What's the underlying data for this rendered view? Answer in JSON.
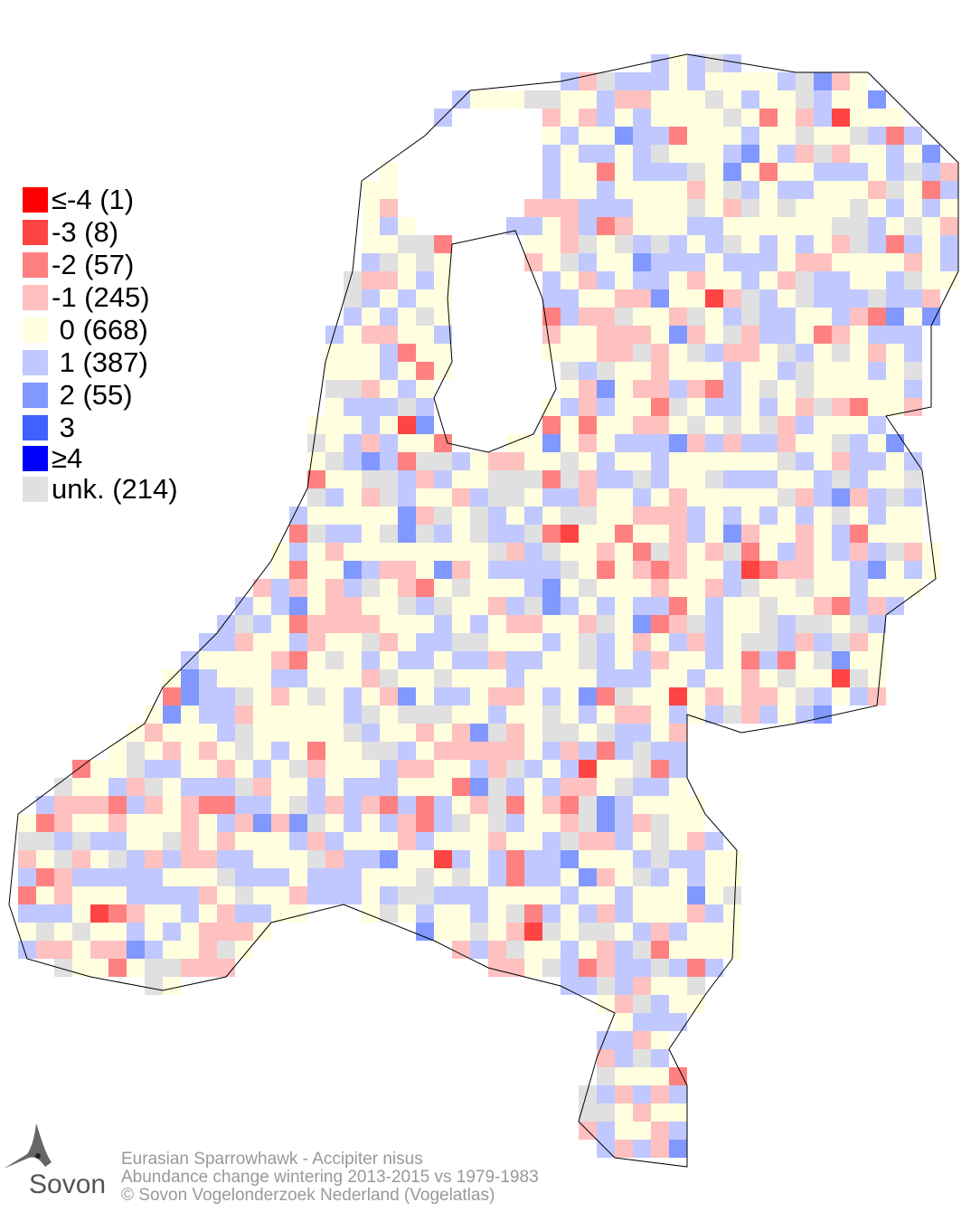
{
  "legend": {
    "items": [
      {
        "label": "≤-4 (1)",
        "class": -4,
        "count": 1,
        "color": "#ff0000"
      },
      {
        "label": "-3 (8)",
        "class": -3,
        "count": 8,
        "color": "#ff4444"
      },
      {
        "label": "-2 (57)",
        "class": -2,
        "count": 57,
        "color": "#ff8080"
      },
      {
        "label": "-1 (245)",
        "class": -1,
        "count": 245,
        "color": "#ffc0c0"
      },
      {
        "label": " 0 (668)",
        "class": 0,
        "count": 668,
        "color": "#ffffe0"
      },
      {
        "label": " 1 (387)",
        "class": 1,
        "count": 387,
        "color": "#c0c8ff"
      },
      {
        "label": " 2 (55)",
        "class": 2,
        "count": 55,
        "color": "#8098ff"
      },
      {
        "label": " 3",
        "class": 3,
        "count": 0,
        "color": "#4060ff"
      },
      {
        "label": "≥4",
        "class": 4,
        "count": 0,
        "color": "#0000ff"
      },
      {
        "label": "unk. (214)",
        "class": "unk",
        "count": 214,
        "color": "#e0e0e0"
      }
    ]
  },
  "footer": {
    "line1": "Eurasian Sparrowhawk - Accipiter nisus",
    "line2": "Abundance change wintering  2013-2015 vs 1979-1983",
    "line3": "© Sovon Vogelonderzoek Nederland (Vogelatlas)"
  },
  "logo": {
    "text": "Sovon"
  }
}
